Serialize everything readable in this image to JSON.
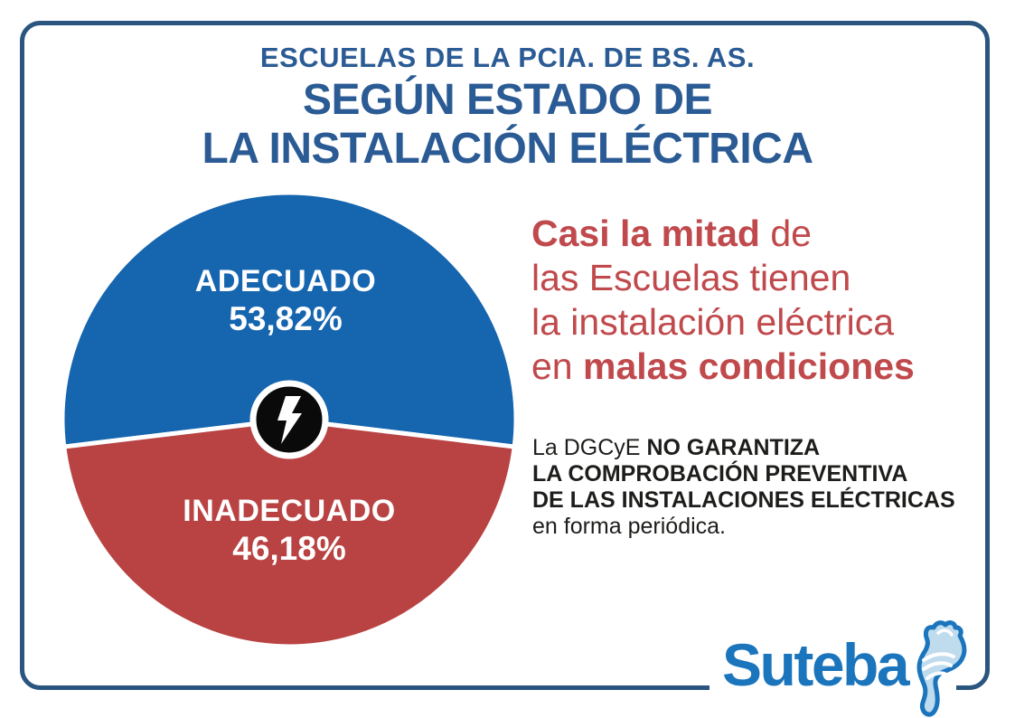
{
  "title": {
    "line1": "ESCUELAS DE LA PCIA. DE BS. AS.",
    "line2": "SEGÚN ESTADO DE",
    "line3": "LA INSTALACIÓN ELÉCTRICA",
    "color": "#2b5b94"
  },
  "chart_data": {
    "type": "pie",
    "title": "ESCUELAS DE LA PCIA. DE BS. AS. SEGÚN ESTADO DE LA INSTALACIÓN ELÉCTRICA",
    "labels": [
      "ADECUADO",
      "INADECUADO"
    ],
    "values": [
      53.82,
      46.18
    ],
    "display_values": [
      "53,82%",
      "46,18%"
    ],
    "colors": [
      "#1565af",
      "#b94343"
    ],
    "slice_label_color": "#ffffff",
    "layout": "largest slice centered on top, white seam between slices",
    "center_icon": "lightning-bolt in black circle with white ring",
    "legend_position": "labels inside slices"
  },
  "highlight": {
    "line1_bold": "Casi la mitad",
    "line1_rest": " de",
    "line2": "las Escuelas tienen",
    "line3": "la instalación eléctrica",
    "line4_pre": "en ",
    "line4_bold": "malas condiciones",
    "color": "#c0494c"
  },
  "note": {
    "line1_pre": "La DGCyE ",
    "line1_bold": "NO GARANTIZA",
    "line2_bold": "LA COMPROBACIÓN PREVENTIVA",
    "line3_bold": "DE LAS INSTALACIONES ELÉCTRICAS",
    "line4": "en forma periódica."
  },
  "logo": {
    "text": "Suteba",
    "color": "#1b75bc"
  },
  "frame": {
    "border_color": "#2a557f"
  }
}
